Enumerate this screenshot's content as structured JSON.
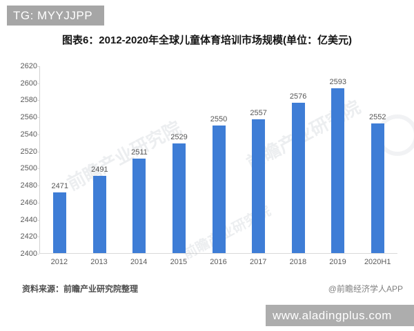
{
  "header": {
    "badge": "TG: MYYJJPP"
  },
  "title": "图表6：2012-2020年全球儿童体育培训市场规模(单位：亿美元)",
  "chart_data": {
    "type": "bar",
    "title": "图表6：2012-2020年全球儿童体育培训市场规模(单位：亿美元)",
    "categories": [
      "2012",
      "2013",
      "2014",
      "2015",
      "2016",
      "2017",
      "2018",
      "2019",
      "2020H1"
    ],
    "values": [
      2471,
      2491,
      2511,
      2529,
      2550,
      2557,
      2576,
      2593,
      2552
    ],
    "xlabel": "",
    "ylabel": "",
    "unit": "亿美元",
    "ylim": [
      2400,
      2620
    ],
    "ytick_step": 20,
    "yticks": [
      2620,
      2600,
      2580,
      2560,
      2540,
      2520,
      2500,
      2480,
      2460,
      2440,
      2420,
      2400
    ],
    "bar_color": "#3e7dd6",
    "grid": false,
    "legend": null,
    "data_labels": true
  },
  "watermark": {
    "text": "前瞻产业研究院"
  },
  "footer": {
    "source": "资料来源：前瞻产业研究院整理",
    "credit": "@前瞻经济学人APP"
  },
  "banner": {
    "url": "www.aladingplus.com"
  }
}
